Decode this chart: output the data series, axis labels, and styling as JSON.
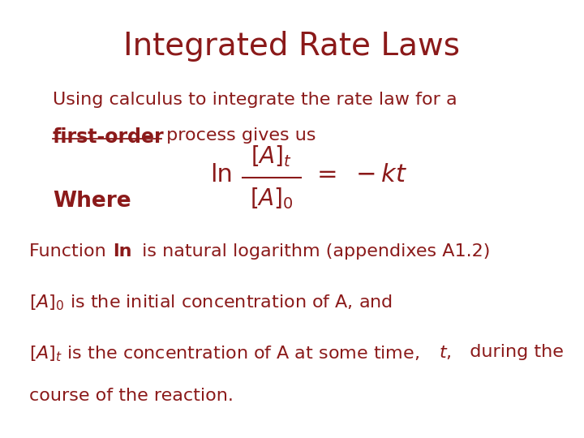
{
  "title": "Integrated Rate Laws",
  "title_color": "#8B1A1A",
  "title_fontsize": 28,
  "bg_color": "#FFFFFF",
  "text_color": "#8B1A1A",
  "body_fontsize": 16,
  "bold_fontsize": 17,
  "formula_fontsize": 20,
  "where_fontsize": 19
}
